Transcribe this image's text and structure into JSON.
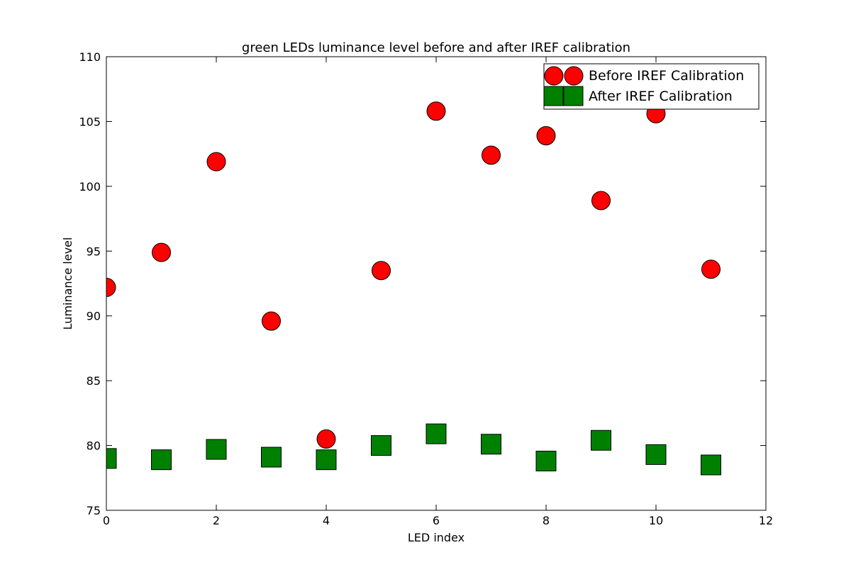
{
  "chart_data": {
    "type": "scatter",
    "title": "green LEDs luminance level before and after IREF calibration",
    "xlabel": "LED index",
    "ylabel": "Luminance level",
    "xlim": [
      0,
      12
    ],
    "ylim": [
      75,
      110
    ],
    "xticks": [
      "0",
      "2",
      "4",
      "6",
      "8",
      "10",
      "12"
    ],
    "yticks": [
      "75",
      "80",
      "85",
      "90",
      "95",
      "100",
      "105",
      "110"
    ],
    "grid": false,
    "legend_position": "top-right",
    "series": [
      {
        "name": "Before IREF Calibration",
        "marker": "circle",
        "color": "#ff0000",
        "x": [
          0,
          1,
          2,
          3,
          4,
          5,
          6,
          7,
          8,
          9,
          10,
          11
        ],
        "y": [
          92.2,
          94.9,
          101.9,
          89.6,
          80.5,
          93.5,
          105.8,
          102.4,
          103.9,
          98.9,
          105.6,
          93.6
        ]
      },
      {
        "name": "After IREF Calibration",
        "marker": "square",
        "color": "#008000",
        "x": [
          0,
          1,
          2,
          3,
          4,
          5,
          6,
          7,
          8,
          9,
          10,
          11
        ],
        "y": [
          79.0,
          78.9,
          79.7,
          79.1,
          78.9,
          80.0,
          80.9,
          80.1,
          78.8,
          80.4,
          79.3,
          78.5
        ]
      }
    ]
  }
}
